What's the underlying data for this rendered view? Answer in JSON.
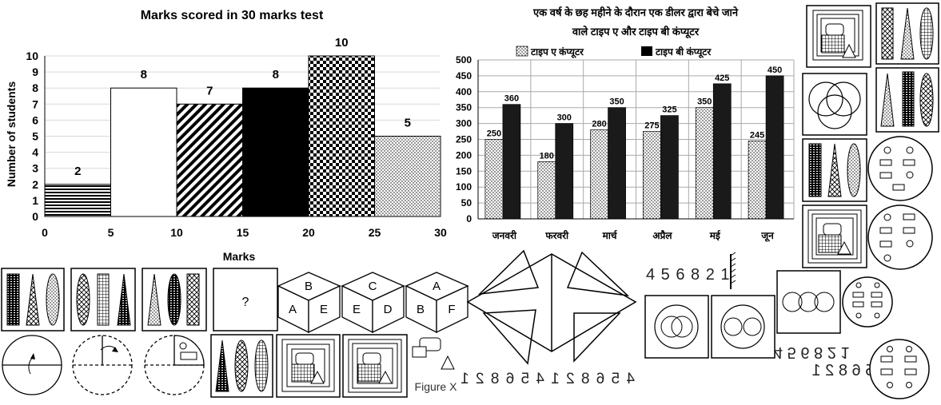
{
  "chart_data": [
    {
      "type": "histogram",
      "title": "Marks scored in 30 marks test",
      "xlabel": "Marks",
      "ylabel": "Number of students",
      "x_ticks": [
        "0",
        "5",
        "10",
        "15",
        "20",
        "25",
        "30"
      ],
      "y_ticks": [
        "0",
        "1",
        "2",
        "3",
        "4",
        "5",
        "6",
        "7",
        "8",
        "9",
        "10"
      ],
      "ylim": [
        0,
        10
      ],
      "bins": [
        {
          "from": 0,
          "to": 5,
          "value": 2,
          "label": "2",
          "pattern": "horizontal-lines"
        },
        {
          "from": 5,
          "to": 10,
          "value": 8,
          "label": "8",
          "pattern": "white"
        },
        {
          "from": 10,
          "to": 15,
          "value": 7,
          "label": "7",
          "pattern": "diagonal-lines"
        },
        {
          "from": 15,
          "to": 20,
          "value": 8,
          "label": "8",
          "pattern": "black"
        },
        {
          "from": 20,
          "to": 25,
          "value": 10,
          "label": "10",
          "pattern": "checker"
        },
        {
          "from": 25,
          "to": 30,
          "value": 5,
          "label": "5",
          "pattern": "dots"
        }
      ]
    },
    {
      "type": "bar",
      "title_line1": "एक वर्ष के छह महीने के दौरान एक डीलर द्वारा बेचे जाने",
      "title_line2": "वाले टाइप ए और टाइप बी कंप्यूटर",
      "categories": [
        "जनवरी",
        "फरवरी",
        "मार्च",
        "अप्रैल",
        "मई",
        "जून"
      ],
      "y_ticks": [
        "0",
        "50",
        "100",
        "150",
        "200",
        "250",
        "300",
        "350",
        "400",
        "450",
        "500"
      ],
      "ylim": [
        0,
        500
      ],
      "series": [
        {
          "name": "टाइप ए कंप्यूटर",
          "values": [
            250,
            180,
            280,
            275,
            350,
            245
          ],
          "pattern": "dots"
        },
        {
          "name": "टाइप बी कंप्यूटर",
          "values": [
            360,
            300,
            350,
            325,
            425,
            450
          ],
          "pattern": "black"
        }
      ]
    }
  ],
  "puzzles": {
    "question_mark": "?",
    "cube_faces": [
      {
        "top": "B",
        "left": "A",
        "right": "E"
      },
      {
        "top": "C",
        "left": "E",
        "right": "D"
      },
      {
        "top": "A",
        "left": "B",
        "right": "F"
      }
    ],
    "number_string": "4 5 6 8 2 1",
    "mirror_strip_text": "4 5 6 8 2 1 4 5 6 8 2 1",
    "mirror_pair_text": [
      "4 5 6 8 2 1",
      "4 5 6 8 2 1"
    ],
    "figure_label": "Figure X"
  }
}
